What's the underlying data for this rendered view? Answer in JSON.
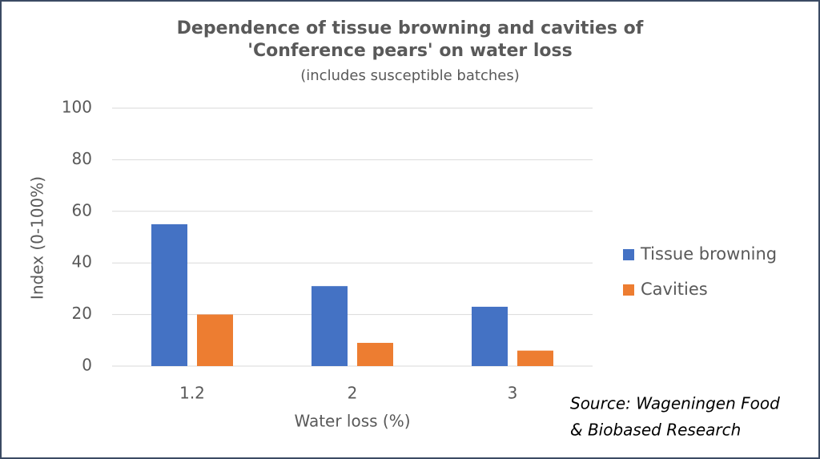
{
  "chart_data": {
    "type": "bar",
    "title": [
      "Dependence of tissue browning and cavities of",
      "'Conference pears' on water loss"
    ],
    "subtitle": "(includes susceptible batches)",
    "x_label": "Water loss (%)",
    "y_label": "Index (0-100%)",
    "annotation": [
      "Source: Wageningen Food",
      "& Biobased Research"
    ],
    "categories": [
      "1.2",
      "2",
      "3"
    ],
    "series": [
      {
        "name": "Tissue browning",
        "color": "#4472c4",
        "values": [
          55,
          31,
          23
        ]
      },
      {
        "name": "Cavities",
        "color": "#ed7d31",
        "values": [
          20,
          9,
          6
        ]
      }
    ],
    "ylim": [
      0,
      100
    ],
    "yticks": [
      0,
      20,
      40,
      60,
      80,
      100
    ],
    "grid": true,
    "legend": "right"
  }
}
